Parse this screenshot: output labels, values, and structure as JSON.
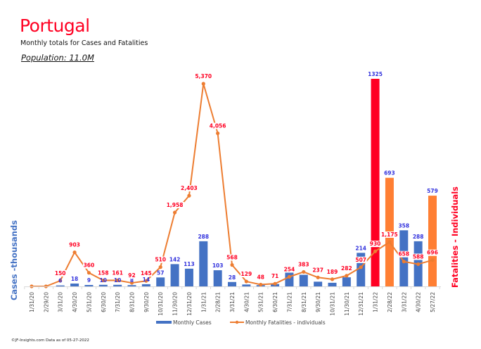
{
  "header": {
    "title": "Portugal",
    "subtitle": "Monthly totals for Cases and Fatalities",
    "population": "Population: 11.0M"
  },
  "footer": {
    "credit": "©JF-Insights.com  Data as of 05-27-2022"
  },
  "colors": {
    "cases": "#4472c4",
    "cases_highlight_max": "#ff0022",
    "cases_highlight_recent": "#ff7f33",
    "fatalities_line": "#ed7d31",
    "fatality_label": "#ff0022",
    "case_label": "#3333dd"
  },
  "chart_data": {
    "type": "bar",
    "title": "Portugal",
    "subtitle": "Monthly totals for Cases and Fatalities",
    "ylabel": "Cases -thousands",
    "y2label": "Fatalities - Individuals",
    "grid": false,
    "legend_placement": "bottom-center",
    "categories": [
      "1/31/20",
      "2/29/20",
      "3/31/20",
      "4/30/20",
      "5/31/20",
      "6/30/20",
      "7/31/20",
      "8/31/20",
      "9/30/20",
      "10/31/20",
      "11/30/20",
      "12/31/20",
      "1/31/21",
      "2/28/21",
      "3/31/21",
      "4/30/21",
      "5/31/21",
      "6/30/21",
      "7/31/21",
      "8/31/21",
      "9/30/21",
      "10/31/21",
      "11/30/21",
      "12/31/21",
      "1/31/22",
      "2/28/22",
      "3/31/22",
      "4/30/22",
      "5/27/22"
    ],
    "series": [
      {
        "name": "Monthly Cases",
        "type": "bar",
        "axis": "left",
        "values": [
          0,
          0,
          6,
          18,
          9,
          10,
          10,
          8,
          14,
          57,
          142,
          113,
          288,
          103,
          28,
          12,
          8,
          15,
          88,
          74,
          30,
          23,
          58,
          214,
          1325,
          693,
          358,
          288,
          579
        ],
        "labels": [
          "",
          "",
          "6",
          "18",
          "9",
          "10",
          "10",
          "8",
          "14",
          "57",
          "142",
          "113",
          "288",
          "103",
          "28",
          "",
          "",
          "",
          "",
          "",
          "",
          "",
          "",
          "214",
          "1325",
          "693",
          "358",
          "288",
          "579"
        ],
        "highlight": [
          "",
          "",
          "",
          "",
          "",
          "",
          "",
          "",
          "",
          "",
          "",
          "",
          "",
          "",
          "",
          "",
          "",
          "",
          "",
          "",
          "",
          "",
          "",
          "",
          "max",
          "recent",
          "",
          "",
          "recent"
        ]
      },
      {
        "name": "Monthly Fatalities - individuals",
        "type": "line",
        "axis": "right",
        "values": [
          0,
          0,
          150,
          903,
          360,
          158,
          161,
          92,
          145,
          510,
          1958,
          2403,
          5370,
          4056,
          568,
          129,
          48,
          71,
          254,
          383,
          237,
          189,
          282,
          507,
          930,
          1175,
          658,
          588,
          696
        ],
        "labels": [
          "",
          "",
          "150",
          "903",
          "360",
          "158",
          "161",
          "92",
          "145",
          "510",
          "1,958",
          "2,403",
          "5,370",
          "4,056",
          "568",
          "129",
          "48",
          "71",
          "254",
          "383",
          "237",
          "189",
          "282",
          "507",
          "930",
          "1,175",
          "658",
          "588",
          "696"
        ]
      }
    ],
    "ylim": [
      0,
      1325
    ],
    "y2lim": [
      0,
      5370
    ]
  }
}
